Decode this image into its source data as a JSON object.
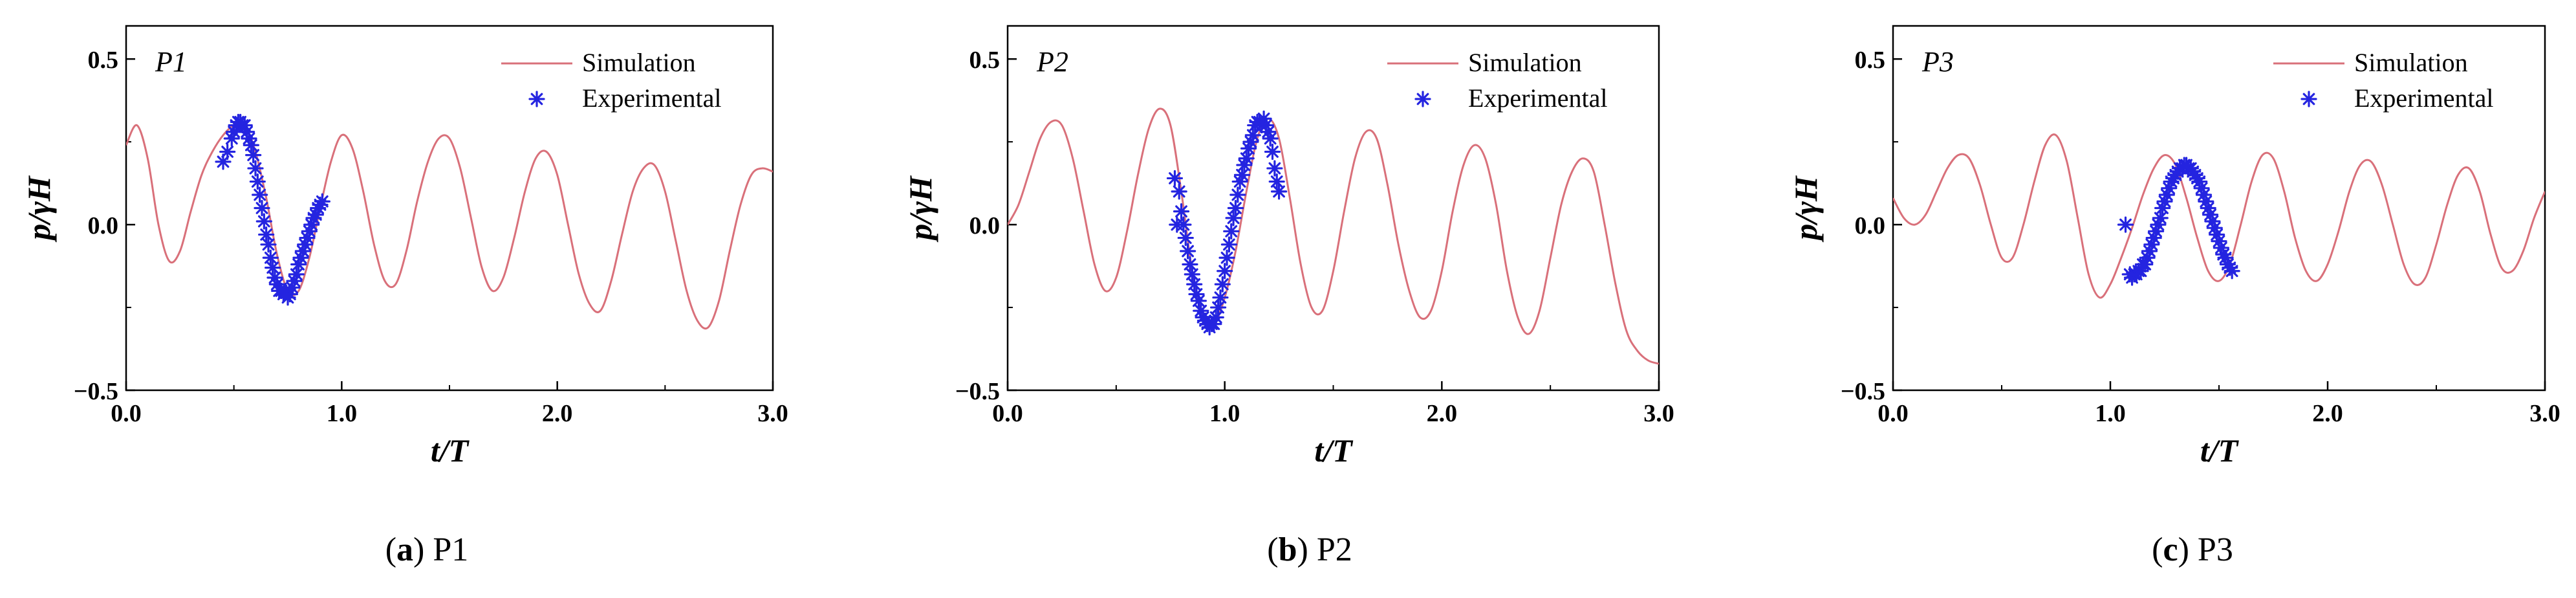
{
  "figure": {
    "panels": [
      {
        "caption_letter": "a",
        "caption_text": " P1"
      },
      {
        "caption_letter": "b",
        "caption_text": " P2"
      },
      {
        "caption_letter": "c",
        "caption_text": " P3"
      }
    ]
  },
  "colors": {
    "simulation": "#d9707a",
    "experimental": "#2424e0",
    "axis": "#000000"
  },
  "chart_data": [
    {
      "type": "line",
      "title": "",
      "panel_label": "P1",
      "xlabel": "t/T",
      "ylabel": "p/γH",
      "xlim": [
        0.0,
        3.0
      ],
      "ylim": [
        -0.5,
        0.6
      ],
      "xticks": [
        "0.0",
        "1.0",
        "2.0",
        "3.0"
      ],
      "yticks": [
        "−0.5",
        "0.0",
        "0.5"
      ],
      "legend": {
        "position": "top-right",
        "entries": [
          "Simulation",
          "Experimental"
        ]
      },
      "series": [
        {
          "name": "Simulation",
          "style": "line",
          "x": [
            0.0,
            0.05,
            0.1,
            0.15,
            0.2,
            0.25,
            0.3,
            0.35,
            0.4,
            0.45,
            0.5,
            0.55,
            0.6,
            0.65,
            0.7,
            0.75,
            0.8,
            0.85,
            0.9,
            0.95,
            1.0,
            1.05,
            1.1,
            1.15,
            1.2,
            1.25,
            1.3,
            1.35,
            1.4,
            1.45,
            1.5,
            1.55,
            1.6,
            1.65,
            1.7,
            1.75,
            1.8,
            1.85,
            1.9,
            1.95,
            2.0,
            2.05,
            2.1,
            2.15,
            2.2,
            2.25,
            2.3,
            2.35,
            2.4,
            2.45,
            2.5,
            2.55,
            2.6,
            2.65,
            2.7,
            2.75,
            2.8,
            2.85,
            2.9,
            2.95,
            3.0
          ],
          "values": [
            0.24,
            0.3,
            0.2,
            0.0,
            -0.11,
            -0.08,
            0.04,
            0.15,
            0.22,
            0.27,
            0.3,
            0.3,
            0.22,
            0.08,
            -0.09,
            -0.2,
            -0.2,
            -0.1,
            0.05,
            0.19,
            0.27,
            0.23,
            0.1,
            -0.06,
            -0.17,
            -0.18,
            -0.08,
            0.07,
            0.19,
            0.26,
            0.26,
            0.17,
            0.02,
            -0.13,
            -0.2,
            -0.16,
            -0.04,
            0.1,
            0.2,
            0.22,
            0.15,
            0.0,
            -0.15,
            -0.24,
            -0.26,
            -0.17,
            -0.03,
            0.1,
            0.17,
            0.18,
            0.1,
            -0.05,
            -0.2,
            -0.29,
            -0.31,
            -0.23,
            -0.08,
            0.06,
            0.15,
            0.17,
            0.16
          ]
        },
        {
          "name": "Experimental",
          "style": "scatter",
          "x": [
            0.45,
            0.47,
            0.49,
            0.5,
            0.51,
            0.52,
            0.53,
            0.54,
            0.55,
            0.56,
            0.57,
            0.58,
            0.59,
            0.6,
            0.61,
            0.62,
            0.63,
            0.64,
            0.65,
            0.66,
            0.67,
            0.68,
            0.69,
            0.7,
            0.71,
            0.72,
            0.73,
            0.74,
            0.75,
            0.76,
            0.77,
            0.78,
            0.79,
            0.8,
            0.81,
            0.82,
            0.83,
            0.84,
            0.85,
            0.86,
            0.87,
            0.88,
            0.89,
            0.9,
            0.91
          ],
          "values": [
            0.19,
            0.22,
            0.26,
            0.28,
            0.3,
            0.31,
            0.31,
            0.3,
            0.3,
            0.28,
            0.26,
            0.24,
            0.21,
            0.17,
            0.13,
            0.09,
            0.05,
            0.01,
            -0.03,
            -0.06,
            -0.1,
            -0.13,
            -0.16,
            -0.18,
            -0.2,
            -0.2,
            -0.21,
            -0.2,
            -0.22,
            -0.21,
            -0.19,
            -0.17,
            -0.15,
            -0.12,
            -0.1,
            -0.08,
            -0.06,
            -0.04,
            -0.02,
            0.0,
            0.02,
            0.03,
            0.05,
            0.06,
            0.07
          ]
        }
      ]
    },
    {
      "type": "line",
      "title": "",
      "panel_label": "P2",
      "xlabel": "t/T",
      "ylabel": "p/γH",
      "xlim": [
        0.0,
        3.0
      ],
      "ylim": [
        -0.5,
        0.6
      ],
      "xticks": [
        "0.0",
        "1.0",
        "2.0",
        "3.0"
      ],
      "yticks": [
        "−0.5",
        "0.0",
        "0.5"
      ],
      "legend": {
        "position": "top-right",
        "entries": [
          "Simulation",
          "Experimental"
        ]
      },
      "series": [
        {
          "name": "Simulation",
          "style": "line",
          "x": [
            0.0,
            0.05,
            0.1,
            0.15,
            0.2,
            0.25,
            0.3,
            0.35,
            0.4,
            0.45,
            0.5,
            0.55,
            0.6,
            0.65,
            0.7,
            0.75,
            0.8,
            0.85,
            0.9,
            0.95,
            1.0,
            1.05,
            1.1,
            1.15,
            1.2,
            1.25,
            1.3,
            1.35,
            1.4,
            1.45,
            1.5,
            1.55,
            1.6,
            1.65,
            1.7,
            1.75,
            1.8,
            1.85,
            1.9,
            1.95,
            2.0,
            2.05,
            2.1,
            2.15,
            2.2,
            2.25,
            2.3,
            2.35,
            2.4,
            2.45,
            2.5,
            2.55,
            2.6,
            2.65,
            2.7,
            2.75,
            2.8,
            2.85,
            2.9,
            2.95,
            3.0
          ],
          "values": [
            0.0,
            0.06,
            0.16,
            0.26,
            0.31,
            0.3,
            0.2,
            0.04,
            -0.12,
            -0.2,
            -0.16,
            -0.02,
            0.15,
            0.29,
            0.35,
            0.3,
            0.1,
            -0.14,
            -0.28,
            -0.3,
            -0.22,
            -0.08,
            0.1,
            0.26,
            0.32,
            0.26,
            0.08,
            -0.12,
            -0.25,
            -0.26,
            -0.14,
            0.04,
            0.2,
            0.28,
            0.26,
            0.12,
            -0.06,
            -0.2,
            -0.28,
            -0.26,
            -0.14,
            0.04,
            0.18,
            0.24,
            0.2,
            0.06,
            -0.14,
            -0.28,
            -0.33,
            -0.26,
            -0.1,
            0.06,
            0.16,
            0.2,
            0.16,
            0.0,
            -0.18,
            -0.32,
            -0.38,
            -0.41,
            -0.42
          ]
        },
        {
          "name": "Experimental",
          "style": "scatter",
          "x": [
            0.77,
            0.78,
            0.79,
            0.8,
            0.81,
            0.82,
            0.83,
            0.84,
            0.85,
            0.86,
            0.87,
            0.88,
            0.89,
            0.9,
            0.91,
            0.92,
            0.93,
            0.94,
            0.95,
            0.96,
            0.97,
            0.98,
            0.99,
            1.0,
            1.01,
            1.02,
            1.03,
            1.04,
            1.05,
            1.06,
            1.07,
            1.08,
            1.09,
            1.1,
            1.11,
            1.12,
            1.13,
            1.14,
            1.15,
            1.16,
            1.17,
            1.18,
            1.19,
            1.2,
            1.21,
            1.22,
            1.23,
            1.24,
            1.25
          ],
          "values": [
            0.14,
            0.0,
            0.1,
            0.04,
            0.0,
            -0.04,
            -0.08,
            -0.12,
            -0.15,
            -0.18,
            -0.21,
            -0.23,
            -0.26,
            -0.28,
            -0.29,
            -0.3,
            -0.31,
            -0.3,
            -0.3,
            -0.28,
            -0.25,
            -0.22,
            -0.18,
            -0.14,
            -0.1,
            -0.06,
            -0.02,
            0.02,
            0.05,
            0.09,
            0.13,
            0.15,
            0.18,
            0.2,
            0.23,
            0.25,
            0.27,
            0.3,
            0.31,
            0.31,
            0.3,
            0.32,
            0.3,
            0.28,
            0.26,
            0.22,
            0.17,
            0.13,
            0.1
          ]
        }
      ]
    },
    {
      "type": "line",
      "title": "",
      "panel_label": "P3",
      "xlabel": "t/T",
      "ylabel": "p/γH",
      "xlim": [
        0.0,
        3.0
      ],
      "ylim": [
        -0.5,
        0.6
      ],
      "xticks": [
        "0.0",
        "1.0",
        "2.0",
        "3.0"
      ],
      "yticks": [
        "−0.5",
        "0.0",
        "0.5"
      ],
      "legend": {
        "position": "top-right",
        "entries": [
          "Simulation",
          "Experimental"
        ]
      },
      "series": [
        {
          "name": "Simulation",
          "style": "line",
          "x": [
            0.0,
            0.05,
            0.1,
            0.15,
            0.2,
            0.25,
            0.3,
            0.35,
            0.4,
            0.45,
            0.5,
            0.55,
            0.6,
            0.65,
            0.7,
            0.75,
            0.8,
            0.85,
            0.9,
            0.95,
            1.0,
            1.05,
            1.1,
            1.15,
            1.2,
            1.25,
            1.3,
            1.35,
            1.4,
            1.45,
            1.5,
            1.55,
            1.6,
            1.65,
            1.7,
            1.75,
            1.8,
            1.85,
            1.9,
            1.95,
            2.0,
            2.05,
            2.1,
            2.15,
            2.2,
            2.25,
            2.3,
            2.35,
            2.4,
            2.45,
            2.5,
            2.55,
            2.6,
            2.65,
            2.7,
            2.75,
            2.8,
            2.85,
            2.9,
            2.95,
            3.0
          ],
          "values": [
            0.08,
            0.02,
            0.0,
            0.03,
            0.1,
            0.17,
            0.21,
            0.2,
            0.12,
            0.0,
            -0.1,
            -0.1,
            0.0,
            0.13,
            0.24,
            0.27,
            0.19,
            0.02,
            -0.15,
            -0.22,
            -0.18,
            -0.1,
            -0.01,
            0.09,
            0.17,
            0.21,
            0.18,
            0.08,
            -0.04,
            -0.14,
            -0.17,
            -0.12,
            0.0,
            0.13,
            0.21,
            0.2,
            0.1,
            -0.04,
            -0.14,
            -0.17,
            -0.12,
            -0.02,
            0.1,
            0.18,
            0.19,
            0.12,
            0.0,
            -0.12,
            -0.18,
            -0.16,
            -0.06,
            0.06,
            0.15,
            0.17,
            0.1,
            -0.03,
            -0.13,
            -0.14,
            -0.08,
            0.02,
            0.1
          ]
        },
        {
          "name": "Experimental",
          "style": "scatter",
          "x": [
            1.07,
            1.09,
            1.1,
            1.11,
            1.12,
            1.13,
            1.14,
            1.15,
            1.16,
            1.17,
            1.18,
            1.19,
            1.2,
            1.21,
            1.22,
            1.23,
            1.24,
            1.25,
            1.26,
            1.27,
            1.28,
            1.29,
            1.3,
            1.31,
            1.32,
            1.33,
            1.34,
            1.35,
            1.36,
            1.37,
            1.38,
            1.39,
            1.4,
            1.41,
            1.42,
            1.43,
            1.44,
            1.45,
            1.46,
            1.47,
            1.48,
            1.49,
            1.5,
            1.51,
            1.52,
            1.53,
            1.54,
            1.55,
            1.56
          ],
          "values": [
            0.0,
            -0.15,
            -0.16,
            -0.15,
            -0.15,
            -0.14,
            -0.14,
            -0.12,
            -0.12,
            -0.1,
            -0.08,
            -0.06,
            -0.04,
            -0.02,
            0.0,
            0.02,
            0.05,
            0.07,
            0.09,
            0.11,
            0.13,
            0.14,
            0.15,
            0.16,
            0.17,
            0.17,
            0.18,
            0.18,
            0.17,
            0.17,
            0.16,
            0.15,
            0.14,
            0.13,
            0.11,
            0.09,
            0.07,
            0.05,
            0.03,
            0.01,
            -0.01,
            -0.03,
            -0.05,
            -0.07,
            -0.09,
            -0.1,
            -0.12,
            -0.13,
            -0.14
          ]
        }
      ]
    }
  ]
}
